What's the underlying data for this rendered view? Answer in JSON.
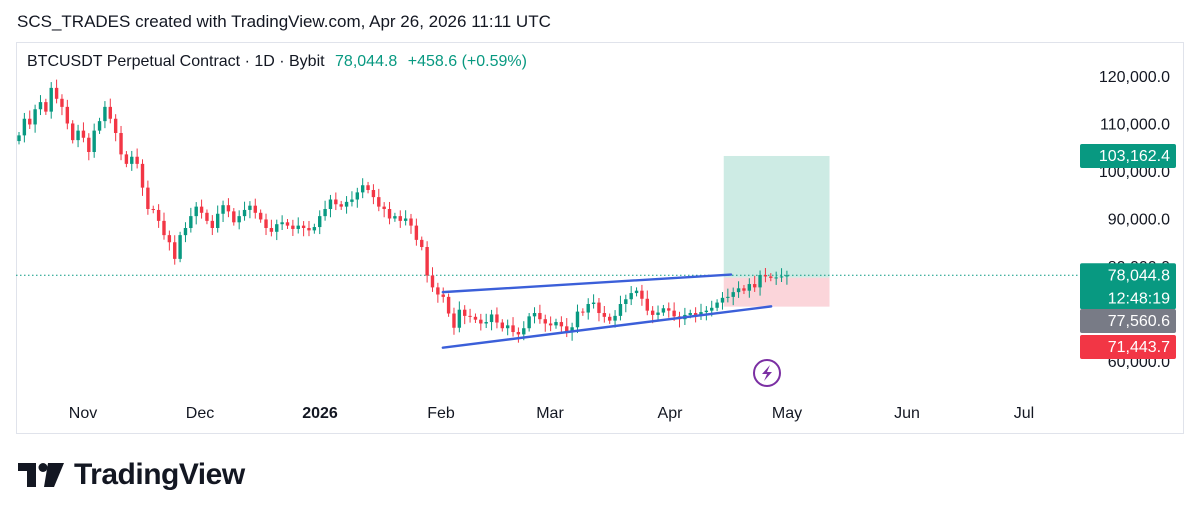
{
  "header": {
    "credit": "SCS_TRADES created with TradingView.com, Apr 26, 2026 11:11 UTC"
  },
  "symbol": {
    "title": "BTCUSDT Perpetual Contract · 1D · Bybit",
    "price": "78,044.8",
    "change": "+458.6 (+0.59%)"
  },
  "brand": {
    "name": "TradingView",
    "logo_icon": "tradingview-logo-icon"
  },
  "colors": {
    "up": "#089981",
    "down": "#f23645",
    "trendline": "#3b5fd9",
    "target_zone": "#cdebe4",
    "stop_zone": "#fbd5da",
    "price_label": "#089981",
    "neutral_label": "#787b86",
    "stop_label": "#f23645",
    "flash_icon": "#7b2fa3"
  },
  "chart_data": {
    "type": "candlestick",
    "title": "BTCUSDT Perpetual Contract · 1D · Bybit",
    "x_tick_labels": [
      "Nov",
      "Dec",
      "2026",
      "Feb",
      "Mar",
      "Apr",
      "May",
      "Jun",
      "Jul"
    ],
    "y_tick_labels": [
      "60,000.0",
      "70,000.0",
      "80,000.0",
      "90,000.0",
      "100,000.0",
      "110,000.0",
      "120,000.0"
    ],
    "y_ticks": [
      60000,
      70000,
      80000,
      90000,
      100000,
      110000,
      120000
    ],
    "ylim": [
      58000,
      124000
    ],
    "x_range": [
      "2025-10-10",
      "2026-07-24"
    ],
    "grid": false,
    "last_price": 78044.8,
    "countdown": "12:48:19",
    "price_labels": [
      {
        "text": "103,162.4",
        "value": 103162.4,
        "kind": "target"
      },
      {
        "text": "78,044.8",
        "value": 78044.8,
        "kind": "last"
      },
      {
        "text": "77,560.6",
        "value": 77560.6,
        "kind": "entry"
      },
      {
        "text": "71,443.7",
        "value": 71443.7,
        "kind": "stop"
      }
    ],
    "position": {
      "start": "2026-04-22",
      "end": "2026-05-21",
      "target": 103162.4,
      "entry": 77560.6,
      "stop": 71443.7
    },
    "trendlines": [
      {
        "name": "upper",
        "from": {
          "date": "2026-02-04",
          "price": 74500
        },
        "to": {
          "date": "2026-04-24",
          "price": 78200
        }
      },
      {
        "name": "lower",
        "from": {
          "date": "2026-02-04",
          "price": 62800
        },
        "to": {
          "date": "2026-05-05",
          "price": 71500
        }
      }
    ],
    "series": [
      {
        "name": "BTCUSDT",
        "closes": [
          107500,
          111000,
          109800,
          113000,
          114500,
          112500,
          117500,
          115200,
          113500,
          110000,
          106500,
          108500,
          107000,
          104000,
          108500,
          110500,
          113500,
          111000,
          108000,
          103500,
          101500,
          103000,
          101500,
          96500,
          92000,
          91800,
          89500,
          86500,
          85000,
          81500,
          86500,
          88000,
          90500,
          92500,
          91200,
          89500,
          88000,
          91000,
          92800,
          91500,
          89200,
          90500,
          91800,
          92700,
          91200,
          89800,
          88000,
          87200,
          88800,
          89200,
          88500,
          87800,
          88500,
          88000,
          87500,
          88200,
          90500,
          92000,
          94000,
          93000,
          92500,
          93500,
          94000,
          95500,
          97000,
          96000,
          94500,
          92500,
          92000,
          90000,
          90500,
          89500,
          90000,
          88500,
          85500,
          84000,
          78000,
          75500,
          74000,
          73500,
          70000,
          67000,
          70800,
          69500,
          69300,
          68700,
          67900,
          68200,
          69800,
          68100,
          66900,
          67500,
          66100,
          65600,
          66900,
          69400,
          70100,
          68800,
          67900,
          67500,
          68200,
          67300,
          66000,
          67100,
          70400,
          70200,
          72000,
          72300,
          70100,
          69300,
          68500,
          69500,
          72000,
          73000,
          74300,
          74800,
          73100,
          70600,
          69700,
          70200,
          71100,
          70600,
          69400,
          68800,
          69700,
          70100,
          69600,
          70300,
          70600,
          71200,
          72300,
          73300,
          73500,
          74500,
          75300,
          74800,
          76200,
          75500,
          78100,
          77800,
          77500,
          77590,
          77800,
          78044.8
        ]
      }
    ]
  }
}
